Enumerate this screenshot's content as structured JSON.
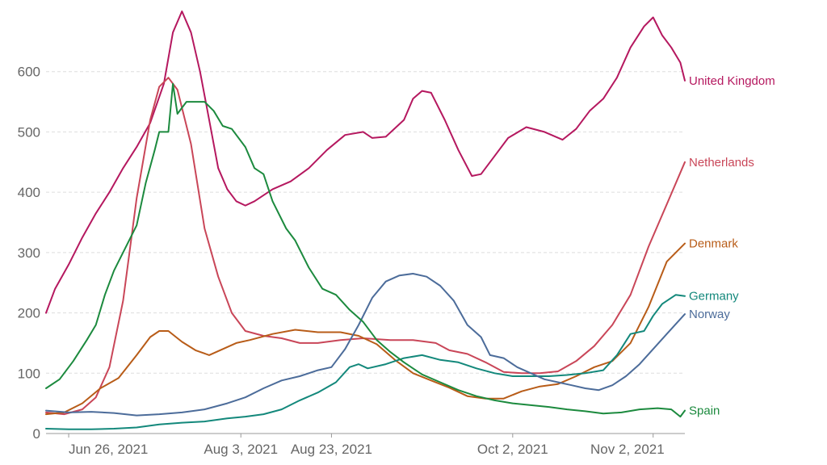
{
  "chart_data": {
    "type": "line",
    "title": "",
    "xlabel": "",
    "ylabel": "",
    "x_range": [
      "2021-06-21",
      "2021-11-09"
    ],
    "ylim": [
      0,
      700
    ],
    "grid": true,
    "legend": "inline-right",
    "y_ticks": [
      {
        "value": 0,
        "label": "0"
      },
      {
        "value": 100,
        "label": "100"
      },
      {
        "value": 200,
        "label": "200"
      },
      {
        "value": 300,
        "label": "300"
      },
      {
        "value": 400,
        "label": "400"
      },
      {
        "value": 500,
        "label": "500"
      },
      {
        "value": 600,
        "label": "600"
      }
    ],
    "x_ticks": [
      {
        "date": "2021-06-26",
        "label": "Jun 26, 2021"
      },
      {
        "date": "2021-08-03",
        "label": "Aug 3, 2021"
      },
      {
        "date": "2021-08-23",
        "label": "Aug 23, 2021"
      },
      {
        "date": "2021-10-02",
        "label": "Oct 2, 2021"
      },
      {
        "date": "2021-11-02",
        "label": "Nov 2, 2021"
      }
    ],
    "series": [
      {
        "name": "United Kingdom",
        "color": "#b5185f",
        "points": [
          [
            "2021-06-21",
            200
          ],
          [
            "2021-06-23",
            240
          ],
          [
            "2021-06-26",
            280
          ],
          [
            "2021-06-29",
            325
          ],
          [
            "2021-07-02",
            365
          ],
          [
            "2021-07-05",
            400
          ],
          [
            "2021-07-08",
            440
          ],
          [
            "2021-07-11",
            475
          ],
          [
            "2021-07-14",
            515
          ],
          [
            "2021-07-17",
            580
          ],
          [
            "2021-07-19",
            665
          ],
          [
            "2021-07-21",
            700
          ],
          [
            "2021-07-23",
            665
          ],
          [
            "2021-07-25",
            600
          ],
          [
            "2021-07-27",
            520
          ],
          [
            "2021-07-29",
            440
          ],
          [
            "2021-07-31",
            405
          ],
          [
            "2021-08-02",
            385
          ],
          [
            "2021-08-04",
            378
          ],
          [
            "2021-08-06",
            385
          ],
          [
            "2021-08-10",
            405
          ],
          [
            "2021-08-14",
            418
          ],
          [
            "2021-08-18",
            440
          ],
          [
            "2021-08-22",
            470
          ],
          [
            "2021-08-26",
            495
          ],
          [
            "2021-08-30",
            500
          ],
          [
            "2021-09-01",
            490
          ],
          [
            "2021-09-04",
            492
          ],
          [
            "2021-09-08",
            520
          ],
          [
            "2021-09-10",
            555
          ],
          [
            "2021-09-12",
            568
          ],
          [
            "2021-09-14",
            565
          ],
          [
            "2021-09-17",
            520
          ],
          [
            "2021-09-20",
            470
          ],
          [
            "2021-09-23",
            427
          ],
          [
            "2021-09-25",
            430
          ],
          [
            "2021-09-28",
            460
          ],
          [
            "2021-10-01",
            490
          ],
          [
            "2021-10-05",
            508
          ],
          [
            "2021-10-09",
            500
          ],
          [
            "2021-10-13",
            487
          ],
          [
            "2021-10-16",
            505
          ],
          [
            "2021-10-19",
            535
          ],
          [
            "2021-10-22",
            555
          ],
          [
            "2021-10-25",
            590
          ],
          [
            "2021-10-28",
            640
          ],
          [
            "2021-10-31",
            675
          ],
          [
            "2021-11-02",
            690
          ],
          [
            "2021-11-04",
            660
          ],
          [
            "2021-11-06",
            640
          ],
          [
            "2021-11-08",
            615
          ],
          [
            "2021-11-09",
            585
          ]
        ]
      },
      {
        "name": "Netherlands",
        "color": "#c94658",
        "points": [
          [
            "2021-06-21",
            35
          ],
          [
            "2021-06-25",
            32
          ],
          [
            "2021-06-29",
            40
          ],
          [
            "2021-07-02",
            60
          ],
          [
            "2021-07-05",
            110
          ],
          [
            "2021-07-08",
            220
          ],
          [
            "2021-07-11",
            390
          ],
          [
            "2021-07-14",
            520
          ],
          [
            "2021-07-16",
            575
          ],
          [
            "2021-07-18",
            590
          ],
          [
            "2021-07-20",
            570
          ],
          [
            "2021-07-23",
            480
          ],
          [
            "2021-07-26",
            340
          ],
          [
            "2021-07-29",
            260
          ],
          [
            "2021-08-01",
            200
          ],
          [
            "2021-08-04",
            170
          ],
          [
            "2021-08-08",
            162
          ],
          [
            "2021-08-12",
            158
          ],
          [
            "2021-08-16",
            150
          ],
          [
            "2021-08-20",
            150
          ],
          [
            "2021-08-25",
            155
          ],
          [
            "2021-08-30",
            158
          ],
          [
            "2021-09-05",
            155
          ],
          [
            "2021-09-10",
            155
          ],
          [
            "2021-09-15",
            150
          ],
          [
            "2021-09-18",
            138
          ],
          [
            "2021-09-22",
            132
          ],
          [
            "2021-09-26",
            118
          ],
          [
            "2021-09-30",
            102
          ],
          [
            "2021-10-04",
            100
          ],
          [
            "2021-10-08",
            100
          ],
          [
            "2021-10-12",
            103
          ],
          [
            "2021-10-16",
            120
          ],
          [
            "2021-10-20",
            145
          ],
          [
            "2021-10-24",
            180
          ],
          [
            "2021-10-28",
            230
          ],
          [
            "2021-11-01",
            310
          ],
          [
            "2021-11-05",
            380
          ],
          [
            "2021-11-09",
            450
          ]
        ]
      },
      {
        "name": "Denmark",
        "color": "#b85c18",
        "points": [
          [
            "2021-06-21",
            32
          ],
          [
            "2021-06-25",
            35
          ],
          [
            "2021-06-29",
            50
          ],
          [
            "2021-07-03",
            75
          ],
          [
            "2021-07-07",
            92
          ],
          [
            "2021-07-11",
            130
          ],
          [
            "2021-07-14",
            160
          ],
          [
            "2021-07-16",
            170
          ],
          [
            "2021-07-18",
            170
          ],
          [
            "2021-07-21",
            152
          ],
          [
            "2021-07-24",
            138
          ],
          [
            "2021-07-27",
            130
          ],
          [
            "2021-07-30",
            140
          ],
          [
            "2021-08-02",
            150
          ],
          [
            "2021-08-05",
            155
          ],
          [
            "2021-08-10",
            165
          ],
          [
            "2021-08-15",
            172
          ],
          [
            "2021-08-20",
            168
          ],
          [
            "2021-08-25",
            168
          ],
          [
            "2021-08-29",
            162
          ],
          [
            "2021-09-02",
            148
          ],
          [
            "2021-09-06",
            122
          ],
          [
            "2021-09-10",
            100
          ],
          [
            "2021-09-14",
            88
          ],
          [
            "2021-09-18",
            76
          ],
          [
            "2021-09-22",
            62
          ],
          [
            "2021-09-26",
            58
          ],
          [
            "2021-09-30",
            58
          ],
          [
            "2021-10-04",
            70
          ],
          [
            "2021-10-08",
            78
          ],
          [
            "2021-10-12",
            82
          ],
          [
            "2021-10-16",
            95
          ],
          [
            "2021-10-20",
            110
          ],
          [
            "2021-10-24",
            120
          ],
          [
            "2021-10-28",
            150
          ],
          [
            "2021-11-01",
            210
          ],
          [
            "2021-11-05",
            285
          ],
          [
            "2021-11-09",
            315
          ]
        ]
      },
      {
        "name": "Germany",
        "color": "#13887b",
        "points": [
          [
            "2021-06-21",
            8
          ],
          [
            "2021-06-26",
            7
          ],
          [
            "2021-07-01",
            7
          ],
          [
            "2021-07-06",
            8
          ],
          [
            "2021-07-11",
            10
          ],
          [
            "2021-07-16",
            15
          ],
          [
            "2021-07-21",
            18
          ],
          [
            "2021-07-26",
            20
          ],
          [
            "2021-07-31",
            25
          ],
          [
            "2021-08-04",
            28
          ],
          [
            "2021-08-08",
            32
          ],
          [
            "2021-08-12",
            40
          ],
          [
            "2021-08-16",
            55
          ],
          [
            "2021-08-20",
            68
          ],
          [
            "2021-08-24",
            85
          ],
          [
            "2021-08-27",
            110
          ],
          [
            "2021-08-29",
            115
          ],
          [
            "2021-08-31",
            108
          ],
          [
            "2021-09-04",
            115
          ],
          [
            "2021-09-08",
            125
          ],
          [
            "2021-09-12",
            130
          ],
          [
            "2021-09-16",
            122
          ],
          [
            "2021-09-20",
            118
          ],
          [
            "2021-09-24",
            108
          ],
          [
            "2021-09-28",
            100
          ],
          [
            "2021-10-02",
            95
          ],
          [
            "2021-10-06",
            95
          ],
          [
            "2021-10-10",
            95
          ],
          [
            "2021-10-14",
            97
          ],
          [
            "2021-10-18",
            100
          ],
          [
            "2021-10-22",
            105
          ],
          [
            "2021-10-25",
            130
          ],
          [
            "2021-10-28",
            165
          ],
          [
            "2021-10-31",
            170
          ],
          [
            "2021-11-02",
            195
          ],
          [
            "2021-11-04",
            215
          ],
          [
            "2021-11-07",
            230
          ],
          [
            "2021-11-09",
            228
          ]
        ]
      },
      {
        "name": "Norway",
        "color": "#4c6c9a",
        "points": [
          [
            "2021-06-21",
            38
          ],
          [
            "2021-06-26",
            35
          ],
          [
            "2021-07-01",
            36
          ],
          [
            "2021-07-06",
            34
          ],
          [
            "2021-07-11",
            30
          ],
          [
            "2021-07-16",
            32
          ],
          [
            "2021-07-21",
            35
          ],
          [
            "2021-07-26",
            40
          ],
          [
            "2021-07-31",
            50
          ],
          [
            "2021-08-04",
            60
          ],
          [
            "2021-08-08",
            75
          ],
          [
            "2021-08-12",
            88
          ],
          [
            "2021-08-16",
            95
          ],
          [
            "2021-08-20",
            105
          ],
          [
            "2021-08-23",
            110
          ],
          [
            "2021-08-26",
            140
          ],
          [
            "2021-08-29",
            180
          ],
          [
            "2021-09-01",
            225
          ],
          [
            "2021-09-04",
            252
          ],
          [
            "2021-09-07",
            262
          ],
          [
            "2021-09-10",
            265
          ],
          [
            "2021-09-13",
            260
          ],
          [
            "2021-09-16",
            245
          ],
          [
            "2021-09-19",
            220
          ],
          [
            "2021-09-22",
            180
          ],
          [
            "2021-09-25",
            160
          ],
          [
            "2021-09-27",
            130
          ],
          [
            "2021-09-30",
            125
          ],
          [
            "2021-10-03",
            110
          ],
          [
            "2021-10-06",
            100
          ],
          [
            "2021-10-09",
            90
          ],
          [
            "2021-10-12",
            85
          ],
          [
            "2021-10-15",
            80
          ],
          [
            "2021-10-18",
            75
          ],
          [
            "2021-10-21",
            72
          ],
          [
            "2021-10-24",
            80
          ],
          [
            "2021-10-27",
            95
          ],
          [
            "2021-10-30",
            115
          ],
          [
            "2021-11-02",
            140
          ],
          [
            "2021-11-05",
            165
          ],
          [
            "2021-11-09",
            198
          ]
        ]
      },
      {
        "name": "Spain",
        "color": "#1c8a3e",
        "points": [
          [
            "2021-06-21",
            75
          ],
          [
            "2021-06-24",
            90
          ],
          [
            "2021-06-27",
            120
          ],
          [
            "2021-06-30",
            155
          ],
          [
            "2021-07-02",
            180
          ],
          [
            "2021-07-04",
            230
          ],
          [
            "2021-07-06",
            270
          ],
          [
            "2021-07-09",
            315
          ],
          [
            "2021-07-11",
            345
          ],
          [
            "2021-07-13",
            415
          ],
          [
            "2021-07-15",
            470
          ],
          [
            "2021-07-16",
            500
          ],
          [
            "2021-07-18",
            500
          ],
          [
            "2021-07-19",
            580
          ],
          [
            "2021-07-20",
            530
          ],
          [
            "2021-07-22",
            550
          ],
          [
            "2021-07-26",
            550
          ],
          [
            "2021-07-28",
            535
          ],
          [
            "2021-07-30",
            510
          ],
          [
            "2021-08-01",
            505
          ],
          [
            "2021-08-04",
            475
          ],
          [
            "2021-08-06",
            440
          ],
          [
            "2021-08-08",
            430
          ],
          [
            "2021-08-10",
            385
          ],
          [
            "2021-08-13",
            340
          ],
          [
            "2021-08-15",
            320
          ],
          [
            "2021-08-18",
            275
          ],
          [
            "2021-08-21",
            240
          ],
          [
            "2021-08-24",
            230
          ],
          [
            "2021-08-27",
            205
          ],
          [
            "2021-08-30",
            185
          ],
          [
            "2021-09-02",
            155
          ],
          [
            "2021-09-05",
            135
          ],
          [
            "2021-09-08",
            118
          ],
          [
            "2021-09-12",
            98
          ],
          [
            "2021-09-16",
            85
          ],
          [
            "2021-09-20",
            72
          ],
          [
            "2021-09-24",
            62
          ],
          [
            "2021-09-28",
            55
          ],
          [
            "2021-10-02",
            50
          ],
          [
            "2021-10-06",
            47
          ],
          [
            "2021-10-10",
            44
          ],
          [
            "2021-10-14",
            40
          ],
          [
            "2021-10-18",
            37
          ],
          [
            "2021-10-22",
            33
          ],
          [
            "2021-10-26",
            35
          ],
          [
            "2021-10-30",
            40
          ],
          [
            "2021-11-03",
            42
          ],
          [
            "2021-11-06",
            40
          ],
          [
            "2021-11-08",
            28
          ],
          [
            "2021-11-09",
            38
          ]
        ]
      }
    ]
  }
}
